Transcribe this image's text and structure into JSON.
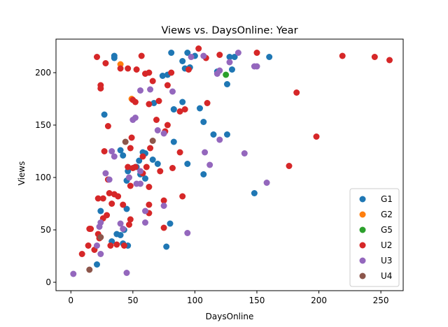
{
  "chart_data": {
    "type": "scatter",
    "title": "Views vs. DaysOnline: Year",
    "xlabel": "DaysOnline",
    "ylabel": "Views",
    "xlim": [
      -12,
      268
    ],
    "ylim": [
      -8,
      232
    ],
    "xticks": [
      0,
      50,
      100,
      150,
      200,
      250
    ],
    "yticks": [
      0,
      50,
      100,
      150,
      200
    ],
    "grid": false,
    "legend_position": "bottom-right",
    "series": [
      {
        "name": "G1",
        "color": "#1f77b4",
        "points": [
          [
            35,
            216
          ],
          [
            35,
            214
          ],
          [
            81,
            219
          ],
          [
            94,
            219
          ],
          [
            100,
            216
          ],
          [
            160,
            215
          ],
          [
            128,
            215
          ],
          [
            132,
            215
          ],
          [
            90,
            211
          ],
          [
            92,
            204
          ],
          [
            96,
            205
          ],
          [
            118,
            201
          ],
          [
            130,
            203
          ],
          [
            78,
            198
          ],
          [
            126,
            189
          ],
          [
            67,
            171
          ],
          [
            83,
            165
          ],
          [
            90,
            172
          ],
          [
            104,
            166
          ],
          [
            107,
            153
          ],
          [
            115,
            141
          ],
          [
            126,
            141
          ],
          [
            83,
            165
          ],
          [
            27,
            160
          ],
          [
            40,
            126
          ],
          [
            42,
            121
          ],
          [
            55,
            116
          ],
          [
            58,
            124
          ],
          [
            60,
            123
          ],
          [
            53,
            110
          ],
          [
            56,
            103
          ],
          [
            60,
            99
          ],
          [
            66,
            117
          ],
          [
            70,
            113
          ],
          [
            83,
            134
          ],
          [
            94,
            113
          ],
          [
            107,
            103
          ],
          [
            46,
            106
          ],
          [
            45,
            97
          ],
          [
            24,
            68
          ],
          [
            45,
            70
          ],
          [
            33,
            39
          ],
          [
            37,
            46
          ],
          [
            40,
            45
          ],
          [
            43,
            50
          ],
          [
            42,
            37
          ],
          [
            46,
            35
          ],
          [
            21,
            17
          ],
          [
            74,
            197
          ],
          [
            80,
            56
          ],
          [
            77,
            34
          ],
          [
            148,
            85
          ]
        ]
      },
      {
        "name": "G2",
        "color": "#ff7f0e",
        "points": [
          [
            40,
            208
          ],
          [
            49,
            175
          ]
        ]
      },
      {
        "name": "G5",
        "color": "#2ca02c",
        "points": [
          [
            125,
            198
          ]
        ]
      },
      {
        "name": "U2",
        "color": "#d62728",
        "points": [
          [
            21,
            215
          ],
          [
            28,
            209
          ],
          [
            40,
            204
          ],
          [
            46,
            204
          ],
          [
            53,
            203
          ],
          [
            57,
            216
          ],
          [
            60,
            199
          ],
          [
            63,
            200
          ],
          [
            66,
            192
          ],
          [
            81,
            200
          ],
          [
            95,
            203
          ],
          [
            103,
            223
          ],
          [
            109,
            214
          ],
          [
            120,
            217
          ],
          [
            150,
            219
          ],
          [
            219,
            216
          ],
          [
            245,
            215
          ],
          [
            257,
            212
          ],
          [
            24,
            188
          ],
          [
            24,
            185
          ],
          [
            50,
            174
          ],
          [
            52,
            172
          ],
          [
            63,
            170
          ],
          [
            69,
            155
          ],
          [
            71,
            173
          ],
          [
            76,
            144
          ],
          [
            78,
            150
          ],
          [
            78,
            188
          ],
          [
            88,
            163
          ],
          [
            92,
            165
          ],
          [
            110,
            171
          ],
          [
            182,
            181
          ],
          [
            198,
            139
          ],
          [
            176,
            111
          ],
          [
            30,
            149
          ],
          [
            49,
            138
          ],
          [
            48,
            128
          ],
          [
            27,
            125
          ],
          [
            64,
            128
          ],
          [
            58,
            120
          ],
          [
            61,
            110
          ],
          [
            72,
            106
          ],
          [
            88,
            124
          ],
          [
            82,
            109
          ],
          [
            48,
            92
          ],
          [
            52,
            110
          ],
          [
            58,
            104
          ],
          [
            46,
            110
          ],
          [
            63,
            91
          ],
          [
            30,
            98
          ],
          [
            31,
            85
          ],
          [
            35,
            84
          ],
          [
            42,
            74
          ],
          [
            33,
            75
          ],
          [
            22,
            80
          ],
          [
            26,
            80
          ],
          [
            26,
            61
          ],
          [
            29,
            64
          ],
          [
            38,
            82
          ],
          [
            63,
            74
          ],
          [
            75,
            78
          ],
          [
            90,
            82
          ],
          [
            63,
            66
          ],
          [
            48,
            60
          ],
          [
            47,
            55
          ],
          [
            75,
            52
          ],
          [
            15,
            51
          ],
          [
            16,
            51
          ],
          [
            22,
            46
          ],
          [
            23,
            42
          ],
          [
            32,
            35
          ],
          [
            37,
            36
          ],
          [
            43,
            35
          ],
          [
            19,
            31
          ],
          [
            14,
            35
          ],
          [
            9,
            27
          ],
          [
            50,
            109
          ]
        ]
      },
      {
        "name": "U3",
        "color": "#9467bd",
        "points": [
          [
            97,
            215
          ],
          [
            120,
            202
          ],
          [
            128,
            210
          ],
          [
            135,
            219
          ],
          [
            150,
            206
          ],
          [
            107,
            216
          ],
          [
            118,
            199
          ],
          [
            64,
            184
          ],
          [
            56,
            183
          ],
          [
            82,
            182
          ],
          [
            70,
            145
          ],
          [
            75,
            142
          ],
          [
            50,
            155
          ],
          [
            52,
            157
          ],
          [
            108,
            124
          ],
          [
            112,
            112
          ],
          [
            120,
            136
          ],
          [
            140,
            123
          ],
          [
            148,
            206
          ],
          [
            158,
            95
          ],
          [
            53,
            94
          ],
          [
            56,
            94
          ],
          [
            56,
            106
          ],
          [
            33,
            125
          ],
          [
            35,
            120
          ],
          [
            28,
            104
          ],
          [
            31,
            98
          ],
          [
            47,
            100
          ],
          [
            60,
            68
          ],
          [
            60,
            57
          ],
          [
            75,
            73
          ],
          [
            94,
            47
          ],
          [
            40,
            56
          ],
          [
            42,
            51
          ],
          [
            24,
            57
          ],
          [
            23,
            53
          ],
          [
            21,
            35
          ],
          [
            24,
            27
          ],
          [
            2,
            8
          ],
          [
            45,
            9
          ]
        ]
      },
      {
        "name": "U4",
        "color": "#8c564b",
        "points": [
          [
            44,
            134
          ],
          [
            66,
            135
          ],
          [
            24,
            43
          ],
          [
            15,
            12
          ]
        ]
      }
    ]
  }
}
